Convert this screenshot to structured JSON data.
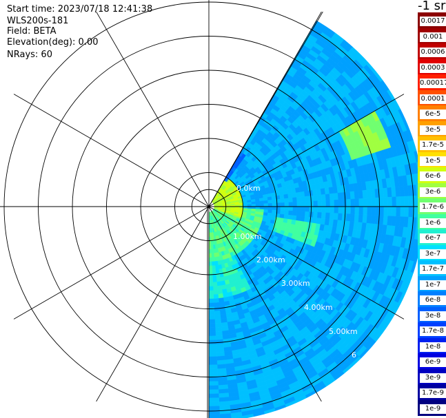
{
  "info": {
    "start_time": "Start time: 2023/07/18 12:41:38",
    "instrument": "WLS200s-181",
    "field": "Field: BETA",
    "elevation": "Elevation(deg): 0.00",
    "nrays": "NRays: 60"
  },
  "colorbar": {
    "title": "-1 sr",
    "labels": [
      "0.0017",
      "0.001",
      "0.0006",
      "0.0003",
      "0.00017",
      "0.0001",
      "6e-5",
      "3e-5",
      "1.7e-5",
      "1e-5",
      "6e-6",
      "3e-6",
      "1.7e-6",
      "1e-6",
      "6e-7",
      "3e-7",
      "1.7e-7",
      "1e-7",
      "6e-8",
      "3e-8",
      "1.7e-8",
      "1e-8",
      "6e-9",
      "3e-9",
      "1.7e-9",
      "1e-9"
    ],
    "colors": [
      "#8b0000",
      "#a00000",
      "#c00000",
      "#e00000",
      "#ff2000",
      "#ff5000",
      "#ff8000",
      "#ffa000",
      "#ffc000",
      "#ffe000",
      "#d0ff10",
      "#a0ff40",
      "#70ff70",
      "#40ffa0",
      "#20f0d0",
      "#00e0ff",
      "#00c0ff",
      "#00a0ff",
      "#0080ff",
      "#0060ff",
      "#0040ff",
      "#0020f0",
      "#0000e0",
      "#0000c0",
      "#0000a0",
      "#000080"
    ]
  },
  "chart_data": {
    "type": "heatmap",
    "projection": "polar (PPI scan)",
    "field": "BETA",
    "units": "sr-1",
    "range_rings_km": [
      1,
      2,
      3,
      4,
      5,
      6
    ],
    "range_labels": [
      "1.00km",
      "2.00km",
      "3.00km",
      "4.00km",
      "5.00km",
      "6"
    ],
    "inner_ring_label": "0.0km",
    "spoke_interval_deg": 30,
    "data_sector_deg": [
      30,
      180
    ],
    "max_range_km": 6.3,
    "colorscale": "log10, 1e-9 to 0.0017",
    "description_of_values": "Backscatter mostly 1e-8 to 1e-7 across sector; higher (1e-6 to 3e-6) near origin within ~1 km; streaks of ~1e-6 around 4-5 km at bearing ~60-70 deg."
  }
}
